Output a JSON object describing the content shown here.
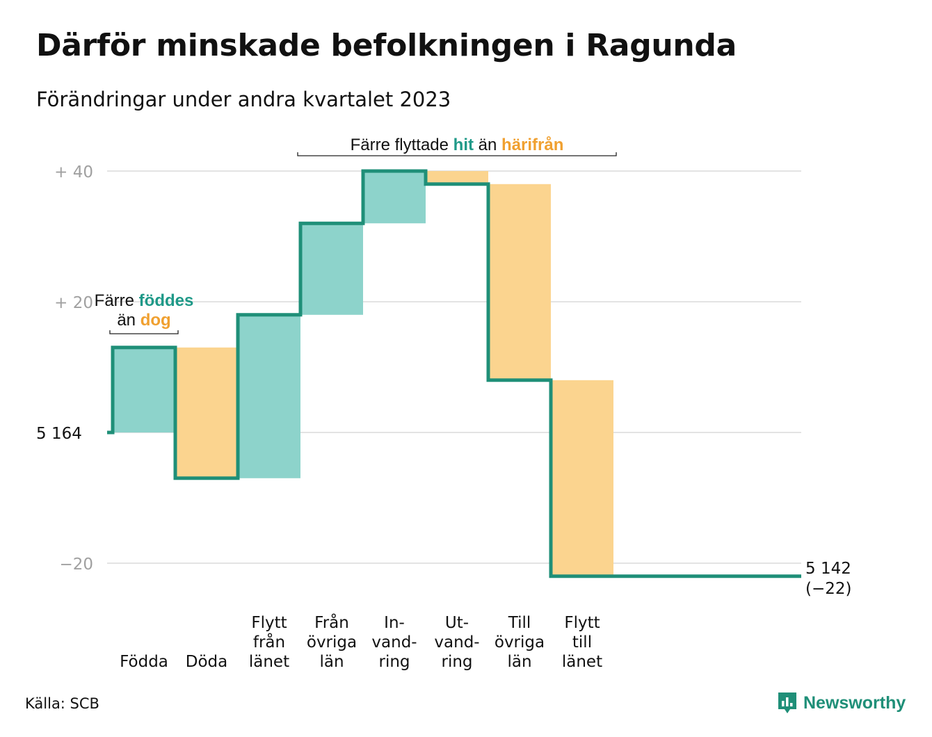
{
  "header": {
    "title": "Därför minskade befolkningen i Ragunda",
    "subtitle": "Förändringar under andra kvartalet 2023"
  },
  "footer": {
    "source": "Källa: SCB",
    "brand": "Newsworthy"
  },
  "colors": {
    "increase_fill": "#8dd3cb",
    "decrease_fill": "#fbd48f",
    "step_line": "#1f8f78",
    "accent_green": "#1f9988",
    "accent_orange": "#f0a030",
    "grid": "#e3e3e3",
    "tick_label": "#a0a0a0"
  },
  "chart_data": {
    "type": "bar",
    "subtype": "waterfall",
    "start_value": 5164,
    "start_label": "5 164",
    "end_value": 5142,
    "end_label": "5 142",
    "end_change_label": "(−22)",
    "y_ticks": [
      {
        "value": 40,
        "label": "+  40"
      },
      {
        "value": 20,
        "label": "+  20"
      },
      {
        "value": 0,
        "label": ""
      },
      {
        "value": -20,
        "label": "−20"
      }
    ],
    "ylim": [
      -22,
      40
    ],
    "grid": true,
    "steps": [
      {
        "category": "Födda",
        "label_lines": [
          "Födda"
        ],
        "change": 13,
        "kind": "increase"
      },
      {
        "category": "Döda",
        "label_lines": [
          "Döda"
        ],
        "change": -20,
        "kind": "decrease"
      },
      {
        "category": "Flytt från länet",
        "label_lines": [
          "Flytt",
          "från",
          "länet"
        ],
        "change": 25,
        "kind": "increase"
      },
      {
        "category": "Från övriga län",
        "label_lines": [
          "Från",
          "övriga",
          "län"
        ],
        "change": 14,
        "kind": "increase"
      },
      {
        "category": "Invandring",
        "label_lines": [
          "In-",
          "vand-",
          "ring"
        ],
        "change": 8,
        "kind": "increase"
      },
      {
        "category": "Utvandring",
        "label_lines": [
          "Ut-",
          "vand-",
          "ring"
        ],
        "change": -2,
        "kind": "decrease"
      },
      {
        "category": "Till övriga län",
        "label_lines": [
          "Till",
          "övriga",
          "län"
        ],
        "change": -30,
        "kind": "decrease"
      },
      {
        "category": "Flytt till länet",
        "label_lines": [
          "Flytt",
          "till",
          "länet"
        ],
        "change": -30,
        "kind": "decrease"
      }
    ],
    "annotations": [
      {
        "id": "births",
        "line1": [
          {
            "text": "Färre ",
            "color": "dark"
          },
          {
            "text": "föddes",
            "color": "green"
          }
        ],
        "line2": [
          {
            "text": "än ",
            "color": "dark"
          },
          {
            "text": "dog",
            "color": "orange"
          }
        ],
        "from_step": 0,
        "to_step": 1
      },
      {
        "id": "moves",
        "line1": [
          {
            "text": "Färre flyttade ",
            "color": "dark"
          },
          {
            "text": "hit",
            "color": "green"
          },
          {
            "text": " än ",
            "color": "dark"
          },
          {
            "text": "härifrån",
            "color": "orange"
          }
        ],
        "from_step": 3,
        "to_step": 8
      }
    ]
  }
}
